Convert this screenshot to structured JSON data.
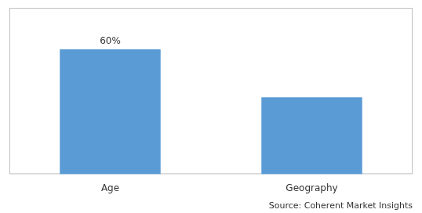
{
  "chart_data": {
    "type": "bar",
    "categories": [
      "Age",
      "Geography"
    ],
    "values": [
      60,
      37
    ],
    "color": "#5b9bd5",
    "ylim": [
      0,
      80
    ],
    "grid": false,
    "tick_labels": "x",
    "annotations": [
      {
        "category": "Age",
        "text": "60%"
      }
    ],
    "source": "Source: Coherent Market Insights"
  }
}
